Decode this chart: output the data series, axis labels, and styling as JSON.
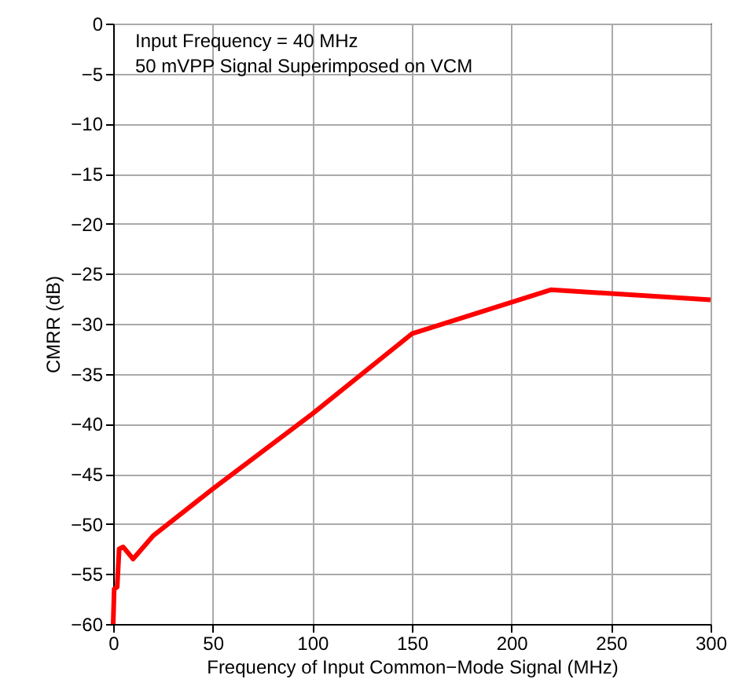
{
  "chart_data": {
    "type": "line",
    "xlabel": "Frequency of Input Common−Mode Signal  (MHz)",
    "ylabel": "CMRR (dB)",
    "annotations": [
      "Input Frequency = 40 MHz",
      "50 mVPP Signal Superimposed on VCM"
    ],
    "x": [
      0,
      0.5,
      2,
      3,
      5,
      10,
      20,
      50,
      100,
      150,
      220,
      300
    ],
    "series": [
      {
        "color": "#ff0000",
        "values": [
          -60,
          -56.5,
          -56.3,
          -52.5,
          -52.3,
          -53.5,
          -51.2,
          -46.5,
          -39,
          -31,
          -26.6,
          -27.6
        ]
      }
    ],
    "xlim": [
      0,
      300
    ],
    "xticks": [
      0,
      50,
      100,
      150,
      200,
      250,
      300
    ],
    "ylim": [
      -60,
      0
    ],
    "yticks": [
      -60,
      -55,
      -50,
      -45,
      -40,
      -35,
      -30,
      -25,
      -20,
      -15,
      -10,
      -5,
      0
    ],
    "grid": true,
    "marker": "none",
    "line_style": "solid"
  }
}
